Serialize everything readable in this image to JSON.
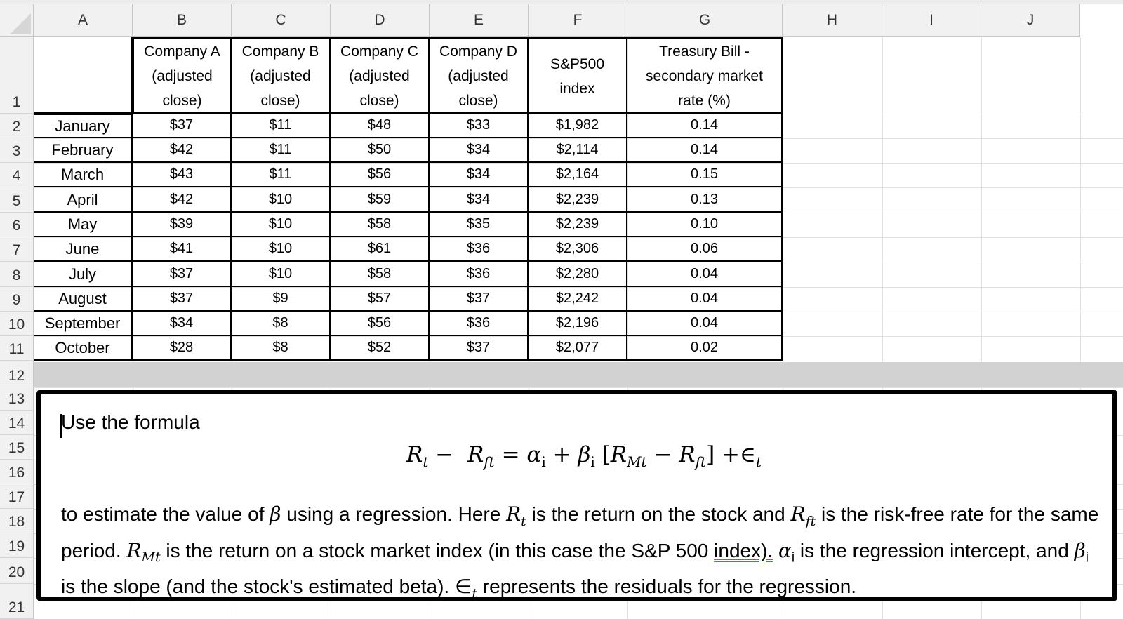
{
  "columns": [
    "A",
    "B",
    "C",
    "D",
    "E",
    "F",
    "G",
    "H",
    "I",
    "J"
  ],
  "rows": [
    "1",
    "2",
    "3",
    "4",
    "5",
    "6",
    "7",
    "8",
    "9",
    "10",
    "11",
    "12",
    "13",
    "14",
    "15",
    "16",
    "17",
    "18",
    "19",
    "20",
    "21"
  ],
  "table": {
    "headers": [
      "",
      "Company A (adjusted close)",
      "Company B (adjusted close)",
      "Company C (adjusted close)",
      "Company D (adjusted close)",
      "S&P500 index",
      "Treasury Bill - secondary market rate (%)"
    ],
    "header_lines": [
      [
        ""
      ],
      [
        "Company A",
        "(adjusted",
        "close)"
      ],
      [
        "Company B",
        "(adjusted",
        "close)"
      ],
      [
        "Company C",
        "(adjusted",
        "close)"
      ],
      [
        "Company D",
        "(adjusted",
        "close)"
      ],
      [
        "S&P500",
        "index"
      ],
      [
        "Treasury Bill -",
        "secondary market",
        "rate (%)"
      ]
    ],
    "data": [
      [
        "January",
        "$37",
        "$11",
        "$48",
        "$33",
        "$1,982",
        "0.14"
      ],
      [
        "February",
        "$42",
        "$11",
        "$50",
        "$34",
        "$2,114",
        "0.14"
      ],
      [
        "March",
        "$43",
        "$11",
        "$56",
        "$34",
        "$2,164",
        "0.15"
      ],
      [
        "April",
        "$42",
        "$10",
        "$59",
        "$34",
        "$2,239",
        "0.13"
      ],
      [
        "May",
        "$39",
        "$10",
        "$58",
        "$35",
        "$2,239",
        "0.10"
      ],
      [
        "June",
        "$41",
        "$10",
        "$61",
        "$36",
        "$2,306",
        "0.06"
      ],
      [
        "July",
        "$37",
        "$10",
        "$58",
        "$36",
        "$2,280",
        "0.04"
      ],
      [
        "August",
        "$37",
        "$9",
        "$57",
        "$37",
        "$2,242",
        "0.04"
      ],
      [
        "September",
        "$34",
        "$8",
        "$56",
        "$36",
        "$2,196",
        "0.04"
      ],
      [
        "October",
        "$28",
        "$8",
        "$52",
        "$37",
        "$2,077",
        "0.02"
      ]
    ]
  },
  "textbox": {
    "intro": "Use the formula",
    "formula": "R_t − R_ft = α_i + β_i [R_Mt − R_ft] +∈_t",
    "body_1": "to estimate the value of ",
    "beta": "β",
    "body_2": " using a regression. Here ",
    "body_3": " is the return on the stock and ",
    "body_4": " is the risk-free rate for the same period. ",
    "body_5": " is the return on a stock market index (in this case the S&P 500 ",
    "body_link": "index).",
    "body_6": " ",
    "body_7": " is the regression intercept, and ",
    "body_8": " is the slope (and the stock's estimated beta). ",
    "body_9": " represents the residuals for the regression."
  }
}
